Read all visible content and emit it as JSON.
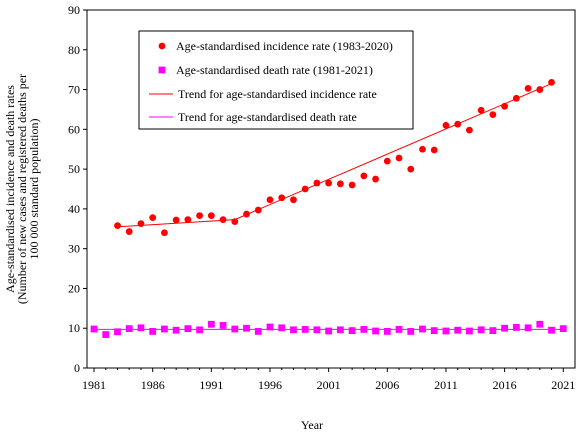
{
  "chart_data": {
    "type": "scatter",
    "xlabel": "Year",
    "ylabel_lines": [
      "Age-standardised incidence and death rates",
      "(Number of new cases and registered deaths per",
      "100 000 standard population)"
    ],
    "xlim": [
      1980.4,
      2022
    ],
    "ylim": [
      0,
      90
    ],
    "x_ticks": [
      1981,
      1986,
      1991,
      1996,
      2001,
      2006,
      2011,
      2016,
      2021
    ],
    "y_ticks": [
      0,
      10,
      20,
      30,
      40,
      50,
      60,
      70,
      80,
      90
    ],
    "grid": false,
    "legend_placement": "top-left",
    "series": [
      {
        "name": "Age-standardised incidence rate (1983-2020)",
        "marker": "circle",
        "color": "#ff0000",
        "x": [
          1983,
          1984,
          1985,
          1986,
          1987,
          1988,
          1989,
          1990,
          1991,
          1992,
          1993,
          1994,
          1995,
          1996,
          1997,
          1998,
          1999,
          2000,
          2001,
          2002,
          2003,
          2004,
          2005,
          2006,
          2007,
          2008,
          2009,
          2010,
          2011,
          2012,
          2013,
          2014,
          2015,
          2016,
          2017,
          2018,
          2019,
          2020
        ],
        "y": [
          35.8,
          34.3,
          36.3,
          37.8,
          34.0,
          37.2,
          37.3,
          38.3,
          38.3,
          37.3,
          36.8,
          38.7,
          39.7,
          42.3,
          42.8,
          42.3,
          45.0,
          46.5,
          46.5,
          46.3,
          46.0,
          48.3,
          47.5,
          52.0,
          52.8,
          50.0,
          55.0,
          54.8,
          61.0,
          61.3,
          59.8,
          64.8,
          63.7,
          65.8,
          67.8,
          70.3,
          70.0,
          71.8
        ]
      },
      {
        "name": "Age-standardised death rate (1981-2021)",
        "marker": "square",
        "color": "#ff00ff",
        "x": [
          1981,
          1982,
          1983,
          1984,
          1985,
          1986,
          1987,
          1988,
          1989,
          1990,
          1991,
          1992,
          1993,
          1994,
          1995,
          1996,
          1997,
          1998,
          1999,
          2000,
          2001,
          2002,
          2003,
          2004,
          2005,
          2006,
          2007,
          2008,
          2009,
          2010,
          2011,
          2012,
          2013,
          2014,
          2015,
          2016,
          2017,
          2018,
          2019,
          2020,
          2021
        ],
        "y": [
          9.8,
          8.4,
          9.1,
          9.9,
          10.1,
          9.2,
          9.8,
          9.5,
          9.9,
          9.6,
          11.0,
          10.7,
          9.8,
          10.0,
          9.2,
          10.3,
          10.1,
          9.6,
          9.7,
          9.6,
          9.3,
          9.6,
          9.4,
          9.7,
          9.3,
          9.2,
          9.7,
          9.2,
          9.8,
          9.4,
          9.3,
          9.5,
          9.3,
          9.6,
          9.4,
          10.0,
          10.2,
          10.1,
          11.0,
          9.5,
          9.9
        ]
      },
      {
        "name": "Trend for age-standardised incidence rate",
        "line": true,
        "color": "#ff0000",
        "x": [
          1983,
          1993,
          2020
        ],
        "y": [
          35.5,
          37.3,
          71.5
        ]
      },
      {
        "name": "Trend for age-standardised death rate",
        "line": true,
        "color": "#ff00ff",
        "x": [
          1981,
          2021
        ],
        "y": [
          9.7,
          9.7
        ]
      }
    ]
  }
}
